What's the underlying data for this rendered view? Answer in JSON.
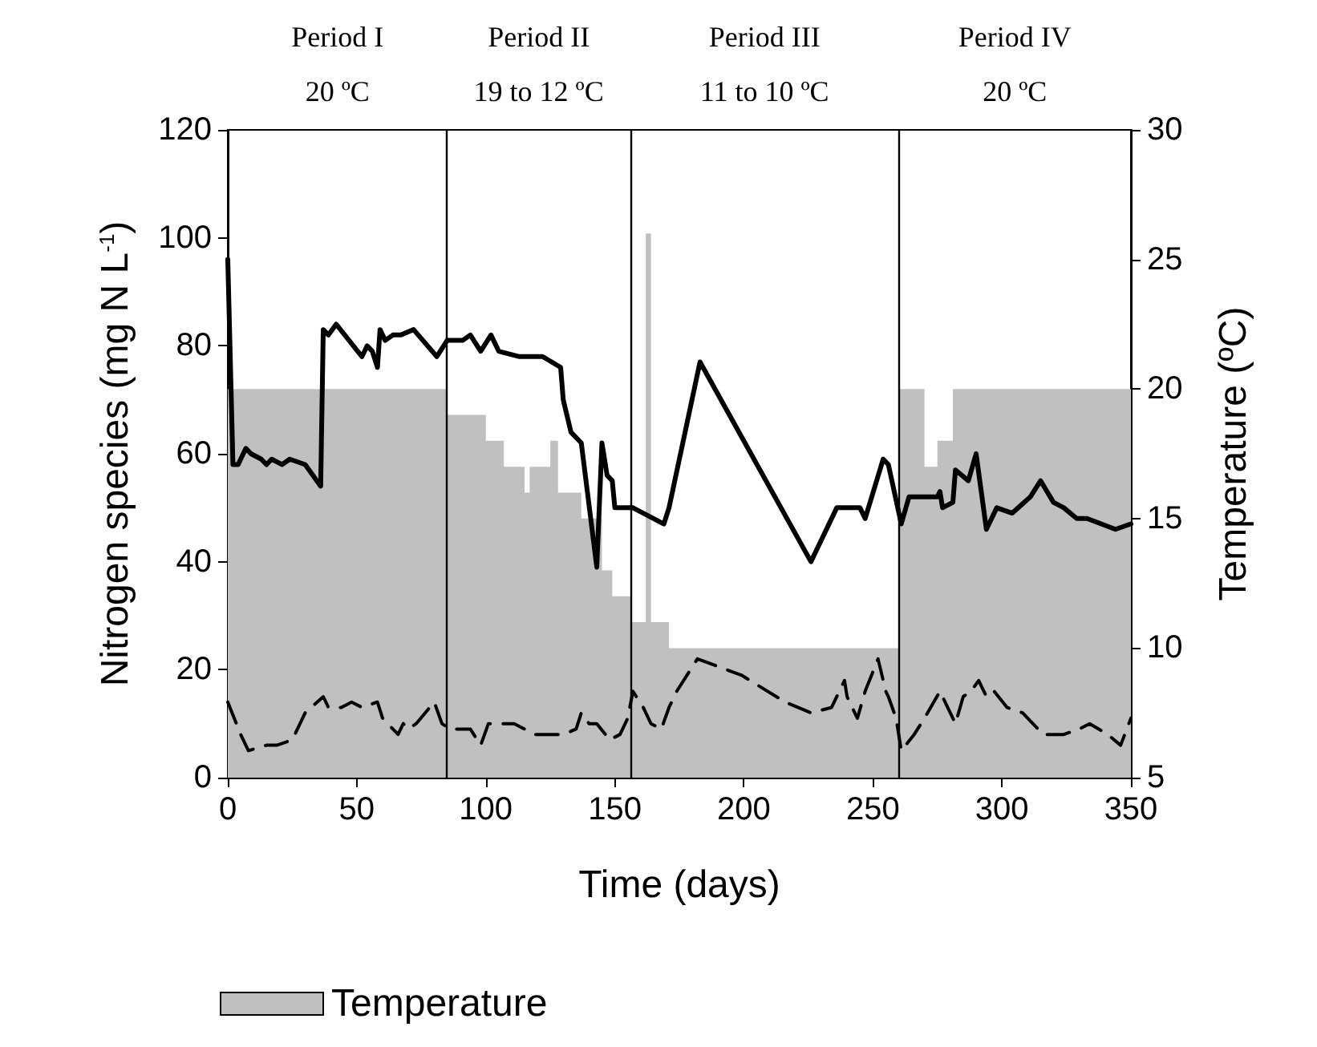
{
  "chart_data": {
    "type": "line",
    "xlabel": "Time (days)",
    "ylabel": "Nitrogen species (mg N L$^{-1}$)",
    "y2label": "Temperature (ºC)",
    "xlim": [
      0,
      350
    ],
    "xticks": [
      0,
      50,
      100,
      150,
      200,
      250,
      300,
      350
    ],
    "ylim": [
      0,
      120
    ],
    "yticks": [
      0,
      20,
      40,
      60,
      80,
      100,
      120
    ],
    "y2lim": [
      5,
      30
    ],
    "y2ticks": [
      5,
      10,
      15,
      20,
      25,
      30
    ],
    "grid": false,
    "legend": "bottom left",
    "marker": "none",
    "series": [
      {
        "name": "Temperature",
        "type": "area",
        "axis": "y2",
        "color": "#c0c0c0",
        "x": [
          0,
          85,
          85,
          100,
          100,
          107,
          107,
          115,
          115,
          117,
          117,
          125,
          125,
          128,
          128,
          137,
          137,
          145,
          145,
          149,
          149,
          156,
          156,
          162,
          162,
          164,
          164,
          171,
          171,
          260,
          260,
          270,
          270,
          275,
          275,
          281,
          281,
          350
        ],
        "values": [
          20,
          20,
          19,
          19,
          18,
          18,
          17,
          17,
          16,
          16,
          17,
          17,
          18,
          18,
          16,
          16,
          15,
          15,
          13,
          13,
          12,
          12,
          11,
          11,
          26,
          26,
          11,
          11,
          10,
          10,
          20,
          20,
          17,
          17,
          18,
          18,
          20,
          20
        ]
      },
      {
        "color": "#000000",
        "line_style": "solid",
        "x": [
          0,
          2,
          4,
          7,
          9,
          13,
          15,
          17,
          21,
          24,
          30,
          36,
          37,
          39,
          42,
          52,
          54,
          56,
          58,
          59,
          61,
          64,
          67,
          72,
          81,
          85,
          91,
          94,
          98,
          102,
          105,
          113,
          122,
          129,
          130,
          133,
          137,
          143,
          145,
          147,
          149,
          150,
          155,
          157,
          169,
          171,
          183,
          226,
          236,
          239,
          245,
          247,
          254,
          256,
          261,
          264,
          275,
          276,
          277,
          281,
          282,
          287,
          290,
          294,
          298,
          304,
          311,
          315,
          320,
          324,
          329,
          333,
          344,
          350
        ],
        "values": [
          96,
          58,
          58,
          61,
          60,
          59,
          58,
          59,
          58,
          59,
          58,
          54,
          83,
          82,
          84,
          78,
          80,
          79,
          76,
          83,
          81,
          82,
          82,
          83,
          78,
          81,
          81,
          82,
          79,
          82,
          79,
          78,
          78,
          76,
          70,
          64,
          62,
          39,
          62,
          56,
          55,
          50,
          50,
          50,
          47,
          50,
          77,
          40,
          50,
          50,
          50,
          48,
          59,
          58,
          47,
          52,
          52,
          53,
          50,
          51,
          57,
          55,
          60,
          46,
          50,
          49,
          52,
          55,
          51,
          50,
          48,
          48,
          46,
          47
        ]
      },
      {
        "color": "#000000",
        "line_style": "dashed",
        "x": [
          0,
          5,
          8,
          15,
          19,
          25,
          30,
          37,
          39,
          44,
          48,
          52,
          58,
          60,
          66,
          68,
          70,
          73,
          80,
          83,
          86,
          94,
          98,
          101,
          108,
          111,
          119,
          126,
          130,
          135,
          137,
          140,
          143,
          148,
          152,
          155,
          157,
          161,
          164,
          168,
          171,
          174,
          182,
          199,
          216,
          226,
          234,
          239,
          240,
          244,
          247,
          252,
          255,
          256,
          259,
          261,
          266,
          270,
          276,
          282,
          285,
          288,
          291,
          294,
          297,
          302,
          308,
          316,
          324,
          330,
          334,
          341,
          346,
          350
        ],
        "values": [
          14,
          8,
          5,
          6,
          6,
          7,
          12,
          15,
          13,
          13,
          14,
          13,
          14,
          11,
          8,
          10,
          9,
          10,
          14,
          10,
          9,
          9,
          6,
          10,
          10,
          10,
          8,
          8,
          8,
          9,
          12,
          10,
          10,
          7,
          8,
          11,
          16,
          13,
          10,
          9,
          13,
          16,
          22,
          19,
          14,
          12,
          13,
          18,
          15,
          11,
          16,
          22,
          16,
          15,
          11,
          5,
          8,
          11,
          16,
          10,
          15,
          16,
          18,
          15,
          16,
          13,
          12,
          8,
          8,
          9,
          10,
          8,
          6,
          11
        ]
      }
    ],
    "ref_lines": [
      {
        "axis": "x",
        "value": 85,
        "color": "#000000",
        "line_style": "solid"
      },
      {
        "axis": "x",
        "value": 156,
        "color": "#000000",
        "line_style": "solid"
      },
      {
        "axis": "x",
        "value": 260,
        "color": "#000000",
        "line_style": "solid"
      }
    ],
    "annotations": [
      "Period I\n20 ºC",
      "Period II\n19 to 12 ºC",
      "Period III\n11 to 10 ºC",
      "Period IV\n20 ºC"
    ]
  }
}
